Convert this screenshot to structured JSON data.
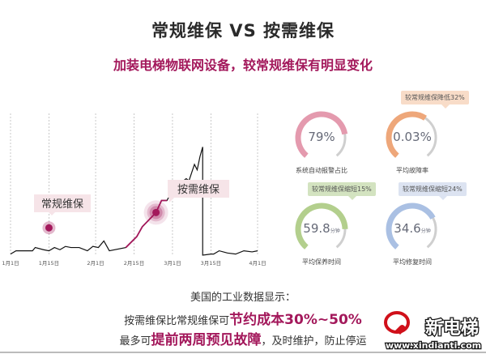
{
  "title": "常规维保 VS 按需维保",
  "subtitle": "加装电梯物联网设备，较常规维保有明显变化",
  "chart_data": {
    "type": "line",
    "x_tick_labels": [
      "1月1日",
      "1月15日",
      "2月1日",
      "2月15日",
      "3月1日",
      "3月15日",
      "4月1日"
    ],
    "x_ticks": [
      "1-1",
      "1-15",
      "2-1",
      "2-15",
      "3-1",
      "3-15",
      "4-1"
    ],
    "grid": "vertical dashed",
    "series": [
      {
        "points": [
          [
            "1-1",
            1
          ],
          [
            "1-3",
            4
          ],
          [
            "1-9",
            4
          ],
          [
            "1-10",
            7
          ],
          [
            "1-13",
            5
          ],
          [
            "1-15",
            4
          ],
          [
            "1-17",
            7
          ],
          [
            "1-19",
            5
          ],
          [
            "1-21",
            8
          ],
          [
            "1-23",
            7
          ],
          [
            "1-26",
            7
          ],
          [
            "1-29",
            4
          ],
          [
            "1-31",
            8
          ],
          [
            "2-2",
            7
          ],
          [
            "2-4",
            13
          ],
          [
            "2-6",
            4
          ],
          [
            "2-12",
            7
          ],
          [
            "2-16",
            17
          ],
          [
            "2-18",
            26
          ],
          [
            "2-23",
            39
          ],
          [
            "2-25",
            50
          ],
          [
            "2-27",
            50
          ],
          [
            "3-1",
            60
          ],
          [
            "3-6",
            70
          ],
          [
            "3-7",
            68
          ],
          [
            "3-9",
            83
          ],
          [
            "3-10",
            78
          ],
          [
            "3-11",
            90
          ],
          [
            "3-12",
            99
          ],
          [
            "3-12",
            0
          ],
          [
            "3-15",
            1
          ],
          [
            "3-16",
            1
          ],
          [
            "3-18",
            4
          ],
          [
            "3-21",
            2
          ],
          [
            "3-24",
            1
          ],
          [
            "3-27",
            4
          ],
          [
            "3-30",
            3
          ],
          [
            "4-1",
            4
          ]
        ],
        "highlight_range": [
          "2-12",
          "2-27"
        ]
      }
    ],
    "annotations": [
      {
        "label": "常规维保",
        "x": "1-15",
        "y": 25
      },
      {
        "label": "按需维保",
        "x": "2-23",
        "y": 39
      }
    ],
    "colors": {
      "line": "#111111",
      "highlight": "#a3185b",
      "marker": "#a3185b",
      "label_bg": "#f6e4e8"
    }
  },
  "gauges": [
    {
      "value": "79%",
      "unit": "",
      "label": "系统自动报警占比",
      "fill": 0.79,
      "color": "#e49aae",
      "callout": ""
    },
    {
      "value": "0.03%",
      "unit": "",
      "label": "平均故障率",
      "fill": 0.62,
      "color": "#eea77a",
      "callout": "较常规维保降低32%",
      "callout_color": "#f8dcc8"
    },
    {
      "value": "59.8",
      "unit": "分钟",
      "label": "平均保养时间",
      "fill": 0.82,
      "color": "#b3cf8d",
      "callout": "较常规维保缩短15%",
      "callout_color": "#d3e3c0"
    },
    {
      "value": "34.6",
      "unit": "分钟",
      "label": "平均修复时间",
      "fill": 0.72,
      "color": "#aac0e3",
      "callout": "较常规维保缩短24%",
      "callout_color": "#dce3f1"
    }
  ],
  "bottom": {
    "line1": "美国的工业数据显示：",
    "line2_pre": "按需维保比常规维保可",
    "line2_hl": "节约成本30%~50%",
    "line3_pre": "最多可",
    "line3_hl": "提前两周预见故障",
    "line3_post": "，及时维护，防止停运"
  },
  "logo": {
    "name": "新电梯",
    "url": "www.xindianti.com"
  }
}
